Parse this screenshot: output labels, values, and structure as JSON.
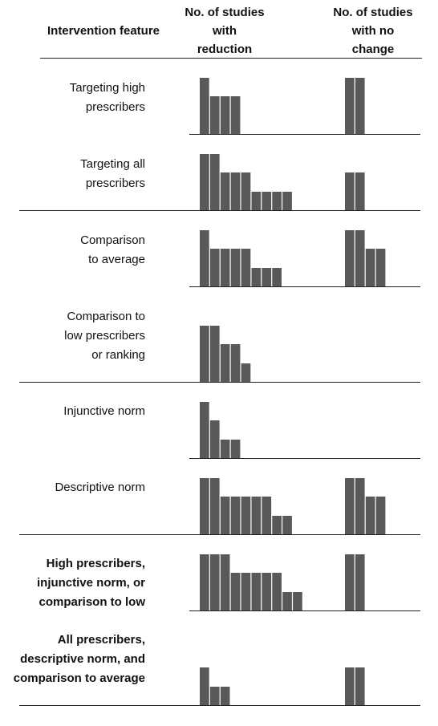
{
  "chart_data": {
    "type": "harvest-plot",
    "headers": {
      "feature": "Intervention feature",
      "reduction": [
        "No. of studies",
        "with",
        "reduction"
      ],
      "no_change": [
        "No. of studies",
        "with no",
        "change"
      ]
    },
    "rows": [
      {
        "feature": [
          "Targeting high",
          "prescribers"
        ],
        "bold": false,
        "reduction": [
          3,
          2,
          2,
          2
        ],
        "no_change": [
          3,
          3
        ]
      },
      {
        "feature": [
          "Targeting all",
          "prescribers"
        ],
        "bold": false,
        "reduction": [
          3,
          3,
          2,
          2,
          2,
          1,
          1,
          1,
          1
        ],
        "no_change": [
          2,
          2
        ]
      },
      {
        "feature": [
          "Comparison",
          "to average"
        ],
        "bold": false,
        "reduction": [
          3,
          2,
          2,
          2,
          2,
          1,
          1,
          1
        ],
        "no_change": [
          3,
          3,
          2,
          2
        ]
      },
      {
        "feature": [
          "Comparison to",
          "low prescribers",
          "or ranking"
        ],
        "bold": false,
        "reduction": [
          3,
          3,
          2,
          2,
          1
        ],
        "no_change": []
      },
      {
        "feature": [
          "Injunctive norm"
        ],
        "bold": false,
        "reduction": [
          3,
          2,
          1,
          1
        ],
        "no_change": []
      },
      {
        "feature": [
          "Descriptive norm"
        ],
        "bold": false,
        "reduction": [
          3,
          3,
          2,
          2,
          2,
          2,
          2,
          1,
          1
        ],
        "no_change": [
          3,
          3,
          2,
          2
        ]
      },
      {
        "feature": [
          "High prescribers,",
          "injunctive norm, or",
          "comparison to low"
        ],
        "bold": true,
        "reduction": [
          3,
          3,
          3,
          2,
          2,
          2,
          2,
          2,
          1,
          1
        ],
        "no_change": [
          3,
          3
        ]
      },
      {
        "feature": [
          "All prescribers,",
          "descriptive norm, and",
          "comparison to average"
        ],
        "bold": true,
        "reduction": [
          2,
          1,
          1
        ],
        "no_change": [
          2,
          2
        ]
      }
    ],
    "bar_color": "#595959"
  }
}
